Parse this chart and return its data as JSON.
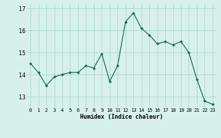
{
  "x": [
    0,
    1,
    2,
    3,
    4,
    5,
    6,
    7,
    8,
    9,
    10,
    11,
    12,
    13,
    14,
    15,
    16,
    17,
    18,
    19,
    20,
    21,
    22,
    23
  ],
  "y": [
    14.5,
    14.1,
    13.5,
    13.9,
    14.0,
    14.1,
    14.1,
    14.4,
    14.3,
    14.95,
    13.7,
    14.4,
    16.4,
    16.8,
    16.1,
    15.8,
    15.4,
    15.5,
    15.35,
    15.5,
    15.0,
    13.8,
    12.8,
    12.65
  ],
  "line_color": "#1a6b5a",
  "marker": "D",
  "marker_size": 1.8,
  "bg_color": "#d8f0ec",
  "grid_color": "#aad8d0",
  "xlabel": "Humidex (Indice chaleur)",
  "ylim": [
    12.5,
    17.2
  ],
  "xlim": [
    -0.5,
    23.5
  ],
  "yticks": [
    13,
    14,
    15,
    16,
    17
  ],
  "xticks": [
    0,
    1,
    2,
    3,
    4,
    5,
    6,
    7,
    8,
    9,
    10,
    11,
    12,
    13,
    14,
    15,
    16,
    17,
    18,
    19,
    20,
    21,
    22,
    23
  ],
  "xtick_labels": [
    "0",
    "1",
    "2",
    "3",
    "4",
    "5",
    "6",
    "7",
    "8",
    "9",
    "10",
    "11",
    "12",
    "13",
    "14",
    "15",
    "16",
    "17",
    "18",
    "19",
    "20",
    "21",
    "22",
    "23"
  ],
  "xlabel_fontsize": 6.0,
  "ytick_fontsize": 6.0,
  "xtick_fontsize": 5.2
}
